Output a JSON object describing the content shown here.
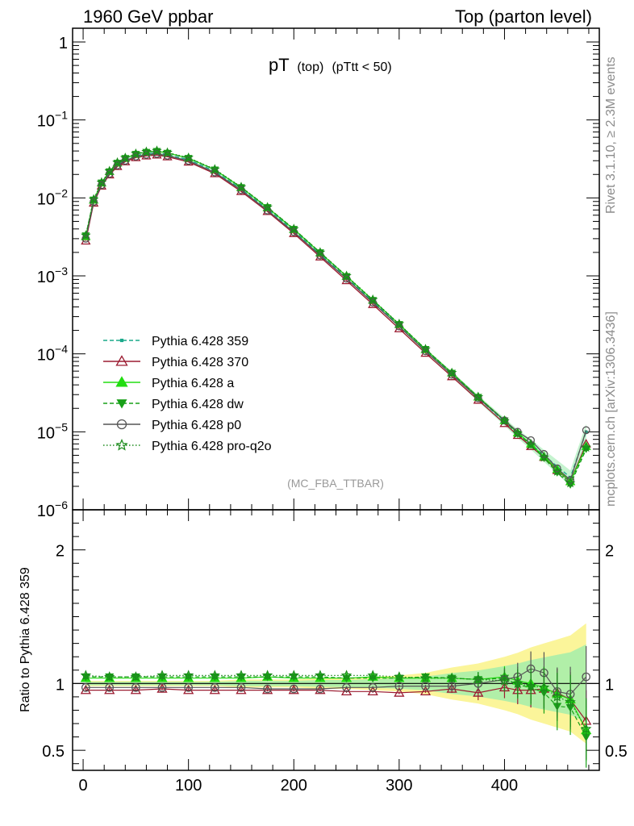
{
  "header": {
    "left": "1960 GeV ppbar",
    "right": "Top (parton level)"
  },
  "side": {
    "rivet": "Rivet 3.1.10, ≥ 2.3M events",
    "mcplots": "mcplots.cern.ch [arXiv:1306.3436]"
  },
  "plot_title": {
    "main": "pT",
    "sub1": "(top)",
    "sub2": "(pTtt < 50)"
  },
  "watermark": "(MC_FBA_TTBAR)",
  "ratio_ylabel": "Ratio to Pythia 6.428 359",
  "legend": [
    {
      "name": "Pythia 6.428 359",
      "color": "#1aa98a",
      "marker": "square",
      "dash": "dashed"
    },
    {
      "name": "Pythia 6.428 370",
      "color": "#9b1b30",
      "marker": "triangle-open",
      "dash": "solid"
    },
    {
      "name": "Pythia 6.428 a",
      "color": "#22dd11",
      "marker": "triangle",
      "dash": "solid"
    },
    {
      "name": "Pythia 6.428 dw",
      "color": "#18a018",
      "marker": "triangle-down",
      "dash": "dashed"
    },
    {
      "name": "Pythia 6.428 p0",
      "color": "#555555",
      "marker": "circle-open",
      "dash": "solid"
    },
    {
      "name": "Pythia 6.428 pro-q2o",
      "color": "#1a8a1a",
      "marker": "star-open",
      "dash": "dotted"
    }
  ],
  "chart_data": [
    {
      "type": "line",
      "panel": "main",
      "title": "pT (top) (pTtt < 50)",
      "xlim": [
        -10,
        490
      ],
      "ylim": [
        1e-06,
        1.5
      ],
      "yscale": "log",
      "yticks": [
        {
          "base": "1",
          "exp": ""
        },
        {
          "base": "10",
          "exp": "−1"
        },
        {
          "base": "10",
          "exp": "−2"
        },
        {
          "base": "10",
          "exp": "−3"
        },
        {
          "base": "10",
          "exp": "−4"
        },
        {
          "base": "10",
          "exp": "−5"
        },
        {
          "base": "10",
          "exp": "−6"
        }
      ],
      "ytick_values": [
        1,
        0.1,
        0.01,
        0.001,
        0.0001,
        1e-05,
        1e-06
      ],
      "x": [
        2.5,
        10,
        17.5,
        25,
        32.5,
        40,
        50,
        60,
        70,
        80,
        100,
        125,
        150,
        175,
        200,
        225,
        250,
        275,
        300,
        325,
        350,
        375,
        400,
        412.5,
        425,
        437.5,
        450,
        462.5,
        477.5
      ],
      "series": [
        {
          "name": "Pythia 6.428 359",
          "values": [
            0.0031,
            0.0092,
            0.015,
            0.021,
            0.027,
            0.031,
            0.035,
            0.037,
            0.038,
            0.036,
            0.031,
            0.022,
            0.013,
            0.0072,
            0.0038,
            0.0019,
            0.00095,
            0.00047,
            0.00023,
            0.00011,
            5.5e-05,
            2.7e-05,
            1.35e-05,
            9.5e-06,
            7e-06,
            5e-06,
            3.6e-06,
            2.6e-06,
            1e-05
          ]
        },
        {
          "name": "Pythia 6.428 370",
          "values": [
            0.0028,
            0.0086,
            0.0142,
            0.0198,
            0.0253,
            0.0291,
            0.0329,
            0.0346,
            0.0355,
            0.0337,
            0.0289,
            0.0205,
            0.0121,
            0.0067,
            0.0035,
            0.00175,
            0.00087,
            0.00043,
            0.00021,
            0.000102,
            5.1e-05,
            2.55e-05,
            1.28e-05,
            9e-06,
            6.5e-06,
            4.7e-06,
            3.2e-06,
            2.3e-06,
            7e-06
          ]
        },
        {
          "name": "Pythia 6.428 a",
          "values": [
            0.0032,
            0.0094,
            0.0156,
            0.0218,
            0.0281,
            0.0323,
            0.0365,
            0.0387,
            0.0398,
            0.0377,
            0.0324,
            0.023,
            0.0136,
            0.0075,
            0.00395,
            0.00198,
            0.00099,
            0.00049,
            0.000239,
            0.000114,
            5.7e-05,
            2.8e-05,
            1.4e-05,
            9.7e-06,
            7e-06,
            4.8e-06,
            3.3e-06,
            2.3e-06,
            6.5e-06
          ]
        },
        {
          "name": "Pythia 6.428 dw",
          "values": [
            0.0033,
            0.0095,
            0.0157,
            0.0219,
            0.0282,
            0.0324,
            0.0366,
            0.0388,
            0.0399,
            0.0378,
            0.0325,
            0.0231,
            0.0137,
            0.0076,
            0.004,
            0.002,
            0.00099,
            0.00049,
            0.00024,
            0.000115,
            5.7e-05,
            2.8e-05,
            1.4e-05,
            9.4e-06,
            6.8e-06,
            4.6e-06,
            3e-06,
            2.1e-06,
            6e-06
          ]
        },
        {
          "name": "Pythia 6.428 p0",
          "values": [
            0.003,
            0.0089,
            0.0146,
            0.0203,
            0.0261,
            0.03,
            0.0339,
            0.0358,
            0.0367,
            0.0348,
            0.0299,
            0.0212,
            0.0126,
            0.0069,
            0.00365,
            0.00183,
            0.00092,
            0.000455,
            0.000225,
            0.000108,
            5.4e-05,
            2.7e-05,
            1.4e-05,
            1e-05,
            7.8e-06,
            5.2e-06,
            3.4e-06,
            2.4e-06,
            1.05e-05
          ]
        },
        {
          "name": "Pythia 6.428 pro-q2o",
          "values": [
            0.0033,
            0.0096,
            0.0158,
            0.0221,
            0.0284,
            0.0326,
            0.0369,
            0.0391,
            0.0402,
            0.0381,
            0.0328,
            0.0233,
            0.0138,
            0.0076,
            0.004,
            0.002,
            0.001,
            0.000495,
            0.000242,
            0.000115,
            5.7e-05,
            2.8e-05,
            1.38e-05,
            9.5e-06,
            6.8e-06,
            4.7e-06,
            3.1e-06,
            2.2e-06,
            6.3e-06
          ]
        }
      ]
    },
    {
      "type": "line",
      "panel": "ratio",
      "ylabel": "Ratio to Pythia 6.428 359",
      "xlim": [
        -10,
        490
      ],
      "ylim": [
        0.35,
        2.3
      ],
      "yticks": [
        "2",
        "1",
        "0.5"
      ],
      "ytick_values": [
        2,
        1,
        0.5
      ],
      "xticks": [
        "0",
        "100",
        "200",
        "300",
        "400"
      ],
      "xtick_values": [
        0,
        100,
        200,
        300,
        400
      ],
      "x": [
        2.5,
        25,
        50,
        75,
        100,
        125,
        150,
        175,
        200,
        225,
        250,
        275,
        300,
        325,
        350,
        375,
        400,
        412.5,
        425,
        437.5,
        450,
        462.5,
        477.5
      ],
      "band_upper": [
        1.02,
        1.02,
        1.02,
        1.02,
        1.02,
        1.02,
        1.03,
        1.03,
        1.03,
        1.04,
        1.04,
        1.05,
        1.06,
        1.08,
        1.12,
        1.15,
        1.2,
        1.23,
        1.27,
        1.3,
        1.33,
        1.36,
        1.45
      ],
      "band_lower": [
        0.98,
        0.98,
        0.98,
        0.98,
        0.98,
        0.98,
        0.97,
        0.97,
        0.97,
        0.96,
        0.96,
        0.95,
        0.94,
        0.92,
        0.88,
        0.85,
        0.8,
        0.77,
        0.73,
        0.7,
        0.67,
        0.64,
        0.55
      ],
      "series": [
        {
          "name": "Pythia 6.428 370",
          "values": [
            0.95,
            0.95,
            0.95,
            0.96,
            0.95,
            0.95,
            0.95,
            0.95,
            0.95,
            0.95,
            0.94,
            0.94,
            0.93,
            0.94,
            0.96,
            0.93,
            0.97,
            0.95,
            0.95,
            0.96,
            0.93,
            0.88,
            0.72
          ]
        },
        {
          "name": "Pythia 6.428 a",
          "values": [
            1.04,
            1.04,
            1.04,
            1.04,
            1.04,
            1.04,
            1.04,
            1.05,
            1.04,
            1.04,
            1.04,
            1.05,
            1.04,
            1.04,
            1.04,
            1.03,
            1.05,
            1.02,
            1.0,
            0.97,
            0.92,
            0.88,
            0.65
          ]
        },
        {
          "name": "Pythia 6.428 dw",
          "values": [
            1.05,
            1.05,
            1.05,
            1.05,
            1.05,
            1.05,
            1.05,
            1.05,
            1.05,
            1.05,
            1.04,
            1.04,
            1.04,
            1.05,
            1.04,
            1.03,
            1.04,
            0.99,
            0.97,
            0.93,
            0.83,
            0.82,
            0.6
          ]
        },
        {
          "name": "Pythia 6.428 p0",
          "values": [
            0.97,
            0.97,
            0.97,
            0.97,
            0.97,
            0.97,
            0.97,
            0.96,
            0.96,
            0.96,
            0.97,
            0.97,
            0.98,
            0.98,
            0.98,
            1.0,
            1.03,
            1.05,
            1.11,
            1.08,
            0.94,
            0.92,
            1.05
          ]
        },
        {
          "name": "Pythia 6.428 pro-q2o",
          "values": [
            1.06,
            1.05,
            1.05,
            1.06,
            1.06,
            1.06,
            1.06,
            1.06,
            1.06,
            1.06,
            1.06,
            1.06,
            1.05,
            1.04,
            1.04,
            1.03,
            1.02,
            1.0,
            0.98,
            0.97,
            0.9,
            0.86,
            0.66
          ]
        }
      ]
    }
  ]
}
